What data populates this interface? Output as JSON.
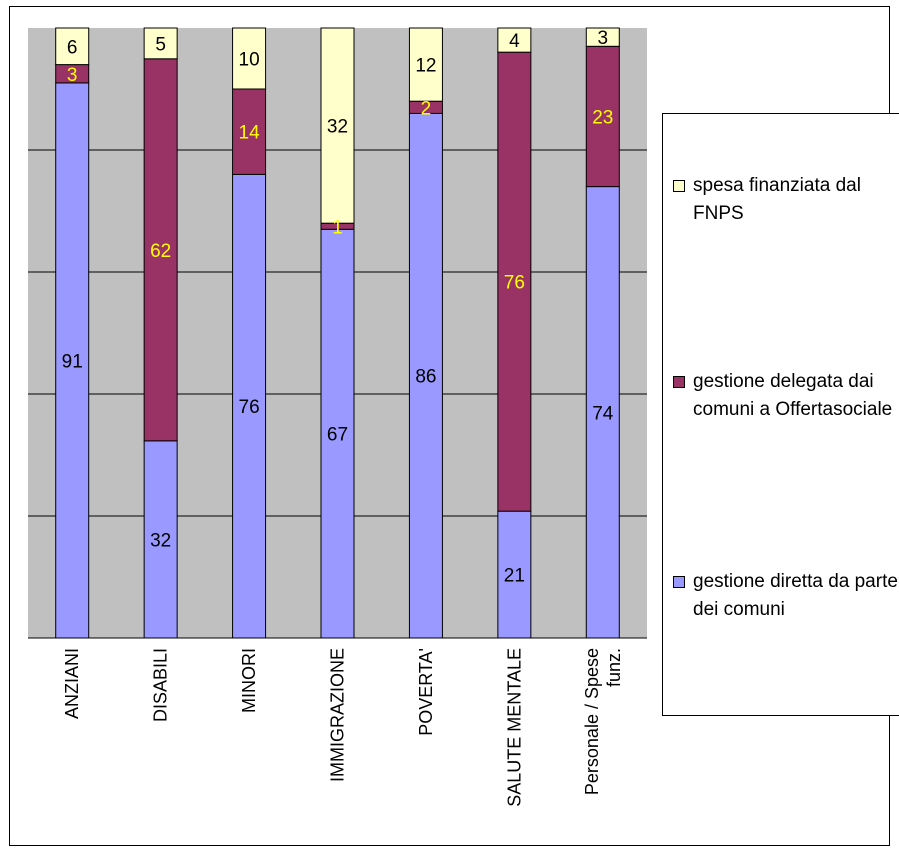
{
  "chart_data": {
    "type": "bar",
    "stacked": true,
    "categories": [
      "ANZIANI",
      "DISABILI",
      "MINORI",
      "IMMIGRAZIONE",
      "POVERTA'",
      "SALUTE MENTALE",
      "Personale / Spese funz."
    ],
    "series": [
      {
        "name": "gestione diretta da parte dei comuni",
        "color": "#9999ff",
        "label_color": "#000000",
        "values": [
          91,
          32,
          76,
          67,
          86,
          21,
          74
        ]
      },
      {
        "name": "gestione delegata dai comuni a Offertasociale",
        "color": "#993366",
        "label_color": "#ffff00",
        "values": [
          3,
          62,
          14,
          1,
          2,
          76,
          23
        ]
      },
      {
        "name": "spesa finanziata dal FNPS",
        "color": "#ffffcc",
        "label_color": "#000000",
        "values": [
          6,
          5,
          10,
          32,
          12,
          4,
          3
        ]
      }
    ],
    "ylim": [
      0,
      100
    ],
    "percent_stacked": true,
    "grid": true,
    "legend_position": "right",
    "plot_background": "#c0c0c0"
  }
}
